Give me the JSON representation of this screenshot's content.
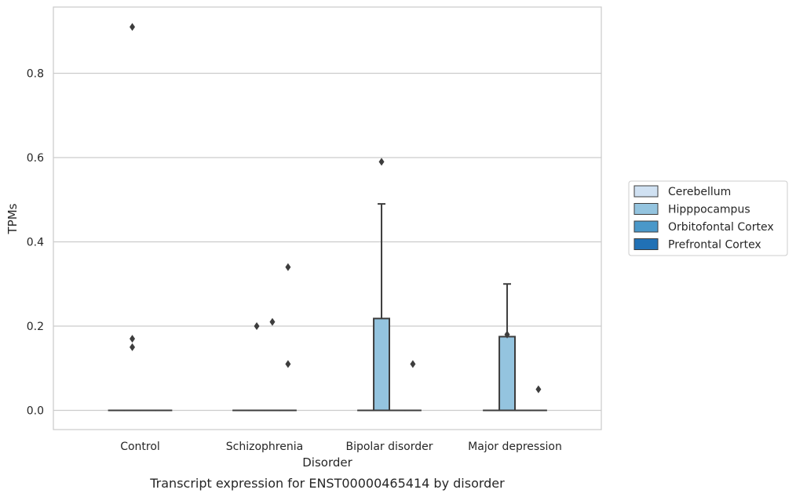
{
  "chart_data": {
    "type": "box",
    "caption": "Transcript expression for ENST00000465414 by disorder",
    "xlabel": "Disorder",
    "ylabel": "TPMs",
    "ylim": [
      -0.045,
      0.955
    ],
    "yticks": [
      "0.0",
      "0.2",
      "0.4",
      "0.6",
      "0.8"
    ],
    "grid": true,
    "legend_position": "right",
    "categories": [
      "Control",
      "Schizophrenia",
      "Bipolar disorder",
      "Major depression"
    ],
    "series": [
      {
        "name": "Cerebellum",
        "color": "#d0e1f2",
        "boxes": [
          {
            "min": 0,
            "q1": 0,
            "median": 0,
            "q3": 0,
            "max": 0,
            "outliers": []
          },
          {
            "min": 0,
            "q1": 0,
            "median": 0,
            "q3": 0,
            "max": 0,
            "outliers": []
          },
          {
            "min": 0,
            "q1": 0,
            "median": 0,
            "q3": 0,
            "max": 0,
            "outliers": []
          },
          {
            "min": 0,
            "q1": 0,
            "median": 0,
            "q3": 0,
            "max": 0,
            "outliers": []
          }
        ]
      },
      {
        "name": "Hipppocampus",
        "color": "#94c4df",
        "boxes": [
          {
            "min": 0,
            "q1": 0,
            "median": 0,
            "q3": 0,
            "max": 0,
            "outliers": [
              0.91,
              0.17,
              0.15
            ]
          },
          {
            "min": 0,
            "q1": 0,
            "median": 0,
            "q3": 0,
            "max": 0,
            "outliers": [
              0.2
            ]
          },
          {
            "min": 0,
            "q1": 0,
            "median": 0,
            "q3": 0.218,
            "max": 0.49,
            "outliers": [
              0.59
            ]
          },
          {
            "min": 0,
            "q1": 0,
            "median": 0,
            "q3": 0.175,
            "max": 0.3,
            "outliers": [
              0.18
            ]
          }
        ]
      },
      {
        "name": "Orbitofontal Cortex",
        "color": "#4a98c9",
        "boxes": [
          {
            "min": 0,
            "q1": 0,
            "median": 0,
            "q3": 0,
            "max": 0,
            "outliers": []
          },
          {
            "min": 0,
            "q1": 0,
            "median": 0,
            "q3": 0,
            "max": 0,
            "outliers": [
              0.21
            ]
          },
          {
            "min": 0,
            "q1": 0,
            "median": 0,
            "q3": 0,
            "max": 0,
            "outliers": []
          },
          {
            "min": 0,
            "q1": 0,
            "median": 0,
            "q3": 0,
            "max": 0,
            "outliers": []
          }
        ]
      },
      {
        "name": "Prefrontal Cortex",
        "color": "#2171b5",
        "boxes": [
          {
            "min": 0,
            "q1": 0,
            "median": 0,
            "q3": 0,
            "max": 0,
            "outliers": []
          },
          {
            "min": 0,
            "q1": 0,
            "median": 0,
            "q3": 0,
            "max": 0,
            "outliers": [
              0.34,
              0.11
            ]
          },
          {
            "min": 0,
            "q1": 0,
            "median": 0,
            "q3": 0,
            "max": 0,
            "outliers": [
              0.11
            ]
          },
          {
            "min": 0,
            "q1": 0,
            "median": 0,
            "q3": 0,
            "max": 0,
            "outliers": [
              0.05
            ]
          }
        ]
      }
    ]
  }
}
